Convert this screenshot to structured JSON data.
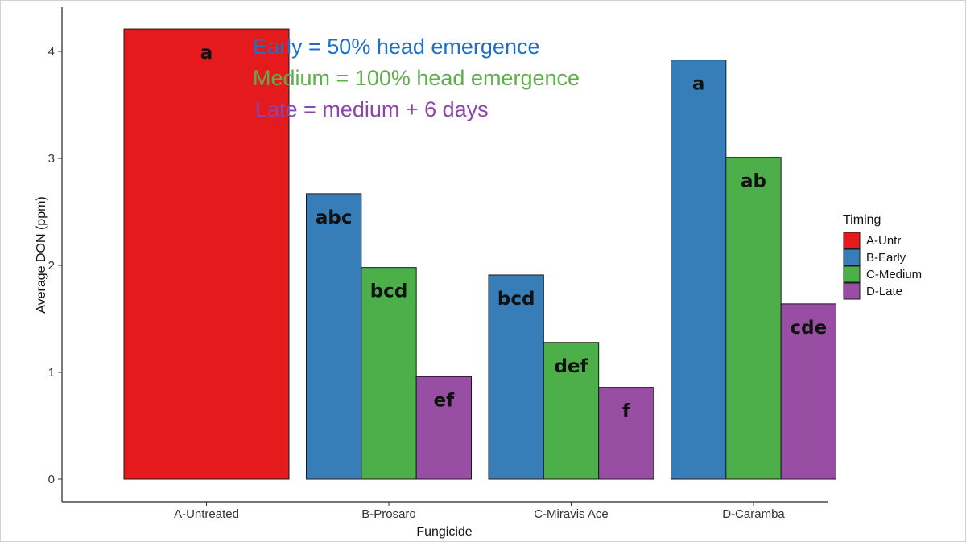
{
  "chart_data": {
    "type": "bar",
    "title": "",
    "xlabel": "Fungicide",
    "ylabel": "Average DON (ppm)",
    "ylim": [
      0,
      4.3
    ],
    "yticks": [
      "0",
      "1",
      "2",
      "3",
      "4"
    ],
    "grid": false,
    "legend_position": "right",
    "legend_title": "Timing",
    "categories": [
      "A-Untreated",
      "B-Prosaro",
      "C-Miravis Ace",
      "D-Caramba"
    ],
    "series": [
      {
        "name": "A-Untr",
        "color": "#E41A1C",
        "values": [
          4.21,
          null,
          null,
          null
        ],
        "labels": [
          "a",
          null,
          null,
          null
        ]
      },
      {
        "name": "B-Early",
        "color": "#377EB8",
        "values": [
          null,
          2.67,
          1.91,
          3.92
        ],
        "labels": [
          null,
          "abc",
          "bcd",
          "a"
        ]
      },
      {
        "name": "C-Medium",
        "color": "#4DAF4A",
        "values": [
          null,
          1.98,
          1.28,
          3.01
        ],
        "labels": [
          null,
          "bcd",
          "def",
          "ab"
        ]
      },
      {
        "name": "D-Late",
        "color": "#984EA3",
        "values": [
          null,
          0.96,
          0.86,
          1.64
        ],
        "labels": [
          null,
          "ef",
          "f",
          "cde"
        ]
      }
    ],
    "annotations": [
      {
        "text": "Early = 50% head emergence",
        "color": "#1F6FC5"
      },
      {
        "text": "Medium = 100% head emergence",
        "color": "#5DAF4A"
      },
      {
        "text": "Late = medium + 6 days",
        "color": "#8E44AD"
      }
    ]
  }
}
